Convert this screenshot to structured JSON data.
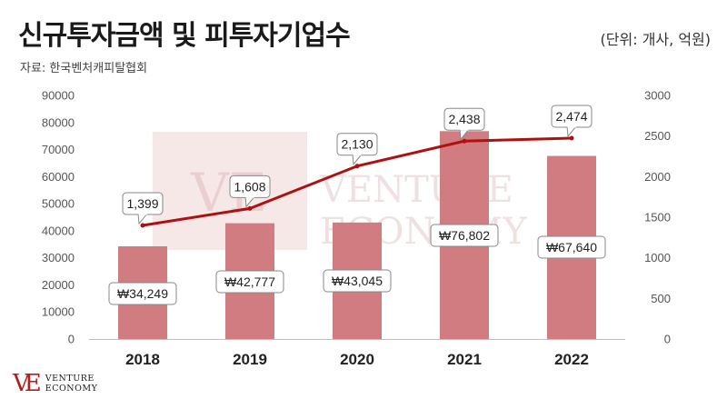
{
  "title": "신규투자금액 및 피투자기업수",
  "unit_label": "(단위: 개사, 억원)",
  "source_label": "자료: 한국벤처캐피탈협회",
  "watermark": {
    "mark": "VE",
    "line1": "VENTURE",
    "line2": "ECONOMY"
  },
  "logo": {
    "mark": "VE",
    "line1": "VENTURE",
    "line2": "ECONOMY"
  },
  "colors": {
    "bar": "#d07c80",
    "line": "#b01010",
    "label_border": "#888888",
    "watermark": "#f3dede"
  },
  "chart_data": {
    "type": "bar+line",
    "categories": [
      "2018",
      "2019",
      "2020",
      "2021",
      "2022"
    ],
    "series": [
      {
        "type": "bar",
        "axis": "left",
        "values": [
          34249,
          42777,
          43045,
          76802,
          67640
        ],
        "labels": [
          "₩34,249",
          "₩42,777",
          "₩43,045",
          "₩76,802",
          "₩67,640"
        ]
      },
      {
        "type": "line",
        "axis": "right",
        "values": [
          1399,
          1608,
          2130,
          2438,
          2474
        ],
        "labels": [
          "1,399",
          "1,608",
          "2,130",
          "2,438",
          "2,474"
        ]
      }
    ],
    "ylim_left": [
      0,
      90000
    ],
    "yticks_left": [
      "0",
      "10000",
      "20000",
      "30000",
      "40000",
      "50000",
      "60000",
      "70000",
      "80000",
      "90000"
    ],
    "ylim_right": [
      0,
      3000
    ],
    "yticks_right": [
      "0",
      "500",
      "1000",
      "1500",
      "2000",
      "2500",
      "3000"
    ],
    "grid": false
  }
}
